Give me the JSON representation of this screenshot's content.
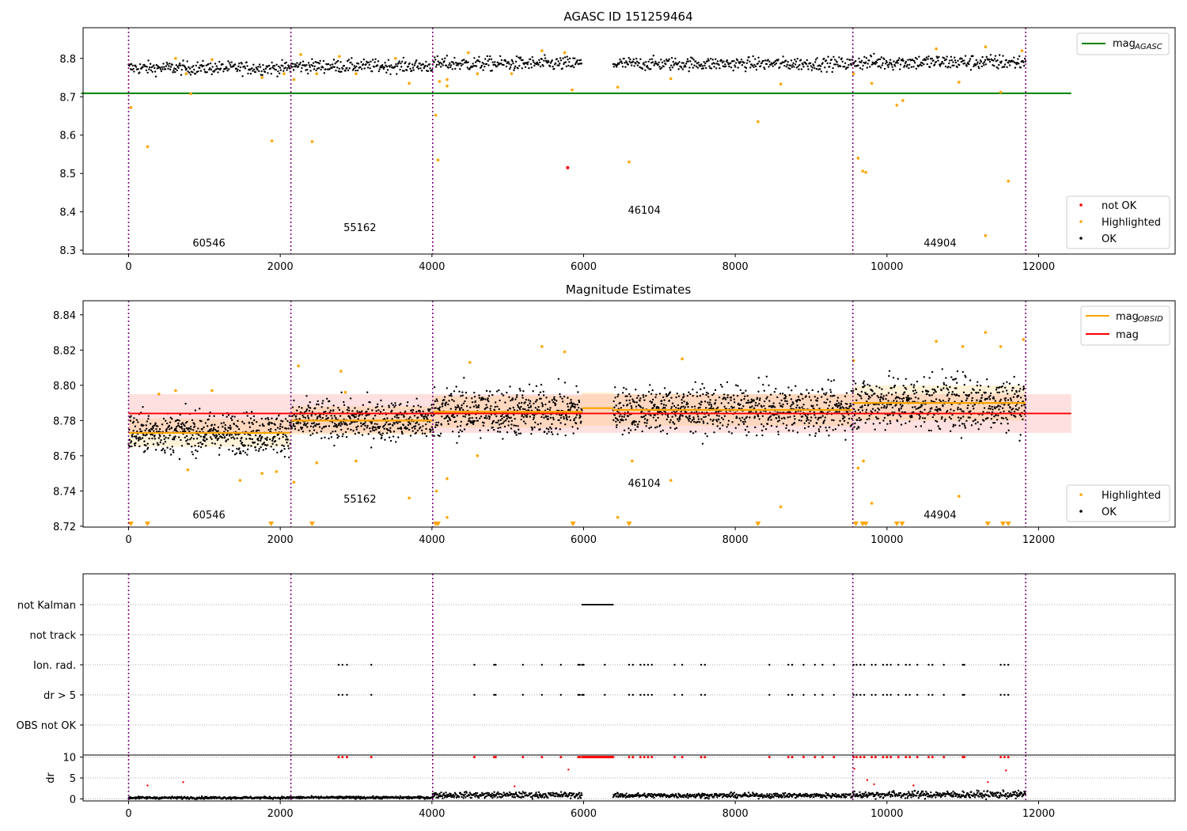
{
  "chart_data": [
    {
      "id": "p1",
      "type": "scatter",
      "title": "AGASC ID 151259464",
      "xlim": [
        -600,
        13800
      ],
      "ylim": [
        8.29,
        8.88
      ],
      "xticks": [
        "0",
        "2000",
        "4000",
        "6000",
        "8000",
        "10000",
        "12000"
      ],
      "xtick_values": [
        0,
        2000,
        4000,
        6000,
        8000,
        10000,
        12000
      ],
      "yticks": [
        "8.3",
        "8.4",
        "8.5",
        "8.6",
        "8.7",
        "8.8"
      ],
      "ytick_values": [
        8.3,
        8.4,
        8.5,
        8.6,
        8.7,
        8.8
      ],
      "obsid_boundaries": [
        0,
        2140,
        4010,
        9550,
        11830
      ],
      "obsid_labels": [
        {
          "text": "60546",
          "x": 1060,
          "y": 8.31
        },
        {
          "text": "55162",
          "x": 3050,
          "y": 8.35
        },
        {
          "text": "46104",
          "x": 6800,
          "y": 8.395
        },
        {
          "text": "44904",
          "x": 10700,
          "y": 8.31
        }
      ],
      "mag_agasc": 8.709,
      "mag_agasc_xrange": [
        0,
        12430
      ],
      "ok_segments": [
        {
          "x0": 0,
          "x1": 2140,
          "mean": 8.775,
          "spread": 0.012
        },
        {
          "x0": 2140,
          "x1": 4010,
          "mean": 8.78,
          "spread": 0.012
        },
        {
          "x0": 4010,
          "x1": 5980,
          "mean": 8.786,
          "spread": 0.013
        },
        {
          "x0": 6390,
          "x1": 9550,
          "mean": 8.786,
          "spread": 0.012
        },
        {
          "x0": 9550,
          "x1": 11830,
          "mean": 8.79,
          "spread": 0.014
        }
      ],
      "highlighted_points": [
        [
          30,
          8.672
        ],
        [
          250,
          8.57
        ],
        [
          620,
          8.8
        ],
        [
          760,
          8.76
        ],
        [
          820,
          8.708
        ],
        [
          1100,
          8.797
        ],
        [
          1760,
          8.75
        ],
        [
          1890,
          8.585
        ],
        [
          2050,
          8.76
        ],
        [
          2180,
          8.745
        ],
        [
          2270,
          8.81
        ],
        [
          2420,
          8.583
        ],
        [
          2480,
          8.76
        ],
        [
          2780,
          8.805
        ],
        [
          3000,
          8.76
        ],
        [
          3520,
          8.8
        ],
        [
          3700,
          8.735
        ],
        [
          4050,
          8.652
        ],
        [
          4080,
          8.535
        ],
        [
          4100,
          8.74
        ],
        [
          4200,
          8.745
        ],
        [
          4200,
          8.728
        ],
        [
          4480,
          8.815
        ],
        [
          4600,
          8.76
        ],
        [
          5050,
          8.76
        ],
        [
          5450,
          8.82
        ],
        [
          5750,
          8.815
        ],
        [
          5850,
          8.718
        ],
        [
          6450,
          8.725
        ],
        [
          6600,
          8.53
        ],
        [
          7150,
          8.747
        ],
        [
          8300,
          8.635
        ],
        [
          8600,
          8.733
        ],
        [
          9560,
          8.76
        ],
        [
          9620,
          8.54
        ],
        [
          9680,
          8.506
        ],
        [
          9720,
          8.503
        ],
        [
          9800,
          8.735
        ],
        [
          10130,
          8.678
        ],
        [
          10210,
          8.69
        ],
        [
          10650,
          8.825
        ],
        [
          10950,
          8.738
        ],
        [
          11300,
          8.83
        ],
        [
          11300,
          8.338
        ],
        [
          11500,
          8.712
        ],
        [
          11600,
          8.48
        ],
        [
          11780,
          8.82
        ]
      ],
      "notok_points": [
        [
          5790,
          8.515
        ]
      ],
      "legend": {
        "line_entry": {
          "label": "mag",
          "sub": "AGASC",
          "color": "#008000"
        },
        "marker_entries": [
          {
            "label": "not OK",
            "color": "#ff0000"
          },
          {
            "label": "Highlighted",
            "color": "#ffa500"
          },
          {
            "label": "OK",
            "color": "#000000"
          }
        ]
      }
    },
    {
      "id": "p2",
      "type": "scatter",
      "title": "Magnitude Estimates",
      "xlim": [
        -600,
        13800
      ],
      "ylim": [
        8.7195,
        8.848
      ],
      "xticks": [
        "0",
        "2000",
        "4000",
        "6000",
        "8000",
        "10000",
        "12000"
      ],
      "xtick_values": [
        0,
        2000,
        4000,
        6000,
        8000,
        10000,
        12000
      ],
      "yticks": [
        "8.72",
        "8.74",
        "8.76",
        "8.78",
        "8.80",
        "8.82",
        "8.84"
      ],
      "ytick_values": [
        8.72,
        8.74,
        8.76,
        8.78,
        8.8,
        8.82,
        8.84
      ],
      "obsid_boundaries": [
        0,
        2140,
        4010,
        9550,
        11830
      ],
      "obsid_labels": [
        {
          "text": "60546",
          "x": 1060,
          "y": 8.7245
        },
        {
          "text": "55162",
          "x": 3050,
          "y": 8.7335
        },
        {
          "text": "46104",
          "x": 6800,
          "y": 8.7425
        },
        {
          "text": "44904",
          "x": 10700,
          "y": 8.7245
        }
      ],
      "mag": 8.784,
      "mag_band": [
        8.773,
        8.795
      ],
      "mag_xrange": [
        0,
        12430
      ],
      "obsid_mags": [
        {
          "x0": 0,
          "x1": 2140,
          "mag": 8.773,
          "band": [
            8.765,
            8.781
          ]
        },
        {
          "x0": 2140,
          "x1": 4010,
          "mag": 8.78,
          "band": [
            8.772,
            8.788
          ]
        },
        {
          "x0": 4010,
          "x1": 5980,
          "mag": 8.785,
          "band": [
            8.776,
            8.794
          ]
        },
        {
          "x0": 5980,
          "x1": 6390,
          "mag": 8.787,
          "band": [
            8.777,
            8.796
          ]
        },
        {
          "x0": 6390,
          "x1": 9550,
          "mag": 8.786,
          "band": [
            8.777,
            8.795
          ]
        },
        {
          "x0": 9550,
          "x1": 11830,
          "mag": 8.79,
          "band": [
            8.78,
            8.8
          ]
        }
      ],
      "ok_segments": [
        {
          "x0": 0,
          "x1": 2140,
          "mean": 8.773,
          "spread": 0.008
        },
        {
          "x0": 2140,
          "x1": 4010,
          "mean": 8.78,
          "spread": 0.008
        },
        {
          "x0": 4010,
          "x1": 5980,
          "mean": 8.785,
          "spread": 0.01
        },
        {
          "x0": 6390,
          "x1": 9550,
          "mean": 8.786,
          "spread": 0.009
        },
        {
          "x0": 9550,
          "x1": 11830,
          "mean": 8.79,
          "spread": 0.011
        }
      ],
      "highlighted_points": [
        [
          400,
          8.795
        ],
        [
          620,
          8.797
        ],
        [
          780,
          8.752
        ],
        [
          1100,
          8.797
        ],
        [
          1470,
          8.746
        ],
        [
          1760,
          8.75
        ],
        [
          1950,
          8.751
        ],
        [
          2180,
          8.745
        ],
        [
          2240,
          8.811
        ],
        [
          2480,
          8.756
        ],
        [
          2800,
          8.808
        ],
        [
          2860,
          8.796
        ],
        [
          3000,
          8.757
        ],
        [
          3700,
          8.736
        ],
        [
          4060,
          8.74
        ],
        [
          4200,
          8.725
        ],
        [
          4200,
          8.747
        ],
        [
          4500,
          8.813
        ],
        [
          4600,
          8.76
        ],
        [
          5450,
          8.822
        ],
        [
          5750,
          8.819
        ],
        [
          6450,
          8.725
        ],
        [
          6640,
          8.757
        ],
        [
          7150,
          8.746
        ],
        [
          7300,
          8.815
        ],
        [
          8600,
          8.731
        ],
        [
          9560,
          8.814
        ],
        [
          9620,
          8.753
        ],
        [
          9690,
          8.757
        ],
        [
          9800,
          8.733
        ],
        [
          10650,
          8.825
        ],
        [
          10950,
          8.737
        ],
        [
          11000,
          8.822
        ],
        [
          11300,
          8.83
        ],
        [
          11500,
          8.822
        ],
        [
          11800,
          8.826
        ]
      ],
      "limit_markers": [
        30,
        250,
        1880,
        2420,
        4050,
        4080,
        5860,
        6600,
        8300,
        9590,
        9680,
        9720,
        10130,
        10200,
        11330,
        11530,
        11600
      ],
      "legend": {
        "line_entries": [
          {
            "label": "mag",
            "sub": "OBSID",
            "color": "#ffa500"
          },
          {
            "label": "mag",
            "sub": "",
            "color": "#ff0000"
          }
        ],
        "marker_entries": [
          {
            "label": "Highlighted",
            "color": "#ffa500"
          },
          {
            "label": "OK",
            "color": "#000000"
          }
        ]
      }
    },
    {
      "id": "p3",
      "type": "scatter",
      "title": "",
      "xlim": [
        -600,
        13800
      ],
      "flag_rows": [
        "not Kalman",
        "not track",
        "Ion. rad.",
        "dr > 5",
        "OBS not OK"
      ],
      "obsid_boundaries": [
        0,
        2140,
        4010,
        9550,
        11830
      ],
      "flag_points": {
        "not Kalman": {
          "ranges": [
            [
              5980,
              6390
            ]
          ]
        },
        "not track": {
          "ranges": []
        },
        "Ion. rad.": {
          "xs": [
            2770,
            2820,
            2880,
            3200,
            4560,
            4820,
            4840,
            5200,
            5450,
            5700,
            5930,
            5950,
            5980,
            6000,
            6280,
            6600,
            6650,
            6750,
            6800,
            6850,
            6900,
            7200,
            7300,
            7550,
            7600,
            8450,
            8700,
            8750,
            8900,
            9050,
            9150,
            9300,
            9560,
            9600,
            9650,
            9700,
            9800,
            9850,
            9950,
            10000,
            10050,
            10150,
            10250,
            10300,
            10400,
            10550,
            10600,
            10750,
            11000,
            11020,
            11500,
            11550,
            11600
          ]
        },
        "dr > 5": {
          "xs": [
            2770,
            2820,
            2880,
            3200,
            4560,
            4820,
            4840,
            5200,
            5450,
            5700,
            5930,
            5950,
            5980,
            6000,
            6280,
            6600,
            6650,
            6750,
            6800,
            6850,
            6900,
            7200,
            7300,
            7550,
            7600,
            8450,
            8700,
            8750,
            8900,
            9050,
            9150,
            9300,
            9560,
            9600,
            9650,
            9700,
            9800,
            9850,
            9950,
            10000,
            10050,
            10150,
            10250,
            10300,
            10400,
            10550,
            10600,
            10750,
            11000,
            11020,
            11500,
            11550,
            11600
          ]
        },
        "OBS not OK": {
          "ranges": []
        }
      }
    },
    {
      "id": "p4",
      "type": "scatter",
      "title": "",
      "ylabel": "dr",
      "xlim": [
        -600,
        13800
      ],
      "ylim": [
        -0.5,
        10.5
      ],
      "xticks": [
        "0",
        "2000",
        "4000",
        "6000",
        "8000",
        "10000",
        "12000"
      ],
      "xtick_values": [
        0,
        2000,
        4000,
        6000,
        8000,
        10000,
        12000
      ],
      "yticks": [
        "0",
        "5",
        "10"
      ],
      "ytick_values": [
        0,
        5,
        10
      ],
      "obsid_boundaries": [
        0,
        2140,
        4010,
        9550,
        11830
      ],
      "ok_segments": [
        {
          "x0": 0,
          "x1": 2140,
          "mean": 0.25,
          "spread": 0.2
        },
        {
          "x0": 2140,
          "x1": 4010,
          "mean": 0.3,
          "spread": 0.2
        },
        {
          "x0": 4010,
          "x1": 5980,
          "mean": 0.9,
          "spread": 0.5
        },
        {
          "x0": 6390,
          "x1": 9550,
          "mean": 0.8,
          "spread": 0.4
        },
        {
          "x0": 9550,
          "x1": 11830,
          "mean": 1.0,
          "spread": 0.6
        }
      ],
      "red_points_at_10": [
        2770,
        2820,
        2880,
        3200,
        4560,
        4820,
        4840,
        5200,
        5450,
        5700,
        5930,
        5950,
        6600,
        6650,
        6750,
        6800,
        6850,
        6900,
        7200,
        7300,
        7550,
        7600,
        8450,
        8700,
        8750,
        8900,
        9050,
        9150,
        9300,
        9560,
        9600,
        9650,
        9700,
        9800,
        9850,
        9950,
        10000,
        10050,
        10150,
        10250,
        10300,
        10400,
        10550,
        10600,
        10750,
        11000,
        11020,
        11500,
        11550,
        11600
      ],
      "red_range_at_10": [
        5980,
        6390
      ],
      "red_scatter": [
        [
          250,
          3.2
        ],
        [
          720,
          4.0
        ],
        [
          5090,
          3.0
        ],
        [
          5800,
          7.0
        ],
        [
          9570,
          7.2
        ],
        [
          9740,
          4.5
        ],
        [
          9830,
          3.5
        ],
        [
          10350,
          3.2
        ],
        [
          11330,
          4.0
        ],
        [
          11570,
          6.8
        ]
      ]
    }
  ]
}
